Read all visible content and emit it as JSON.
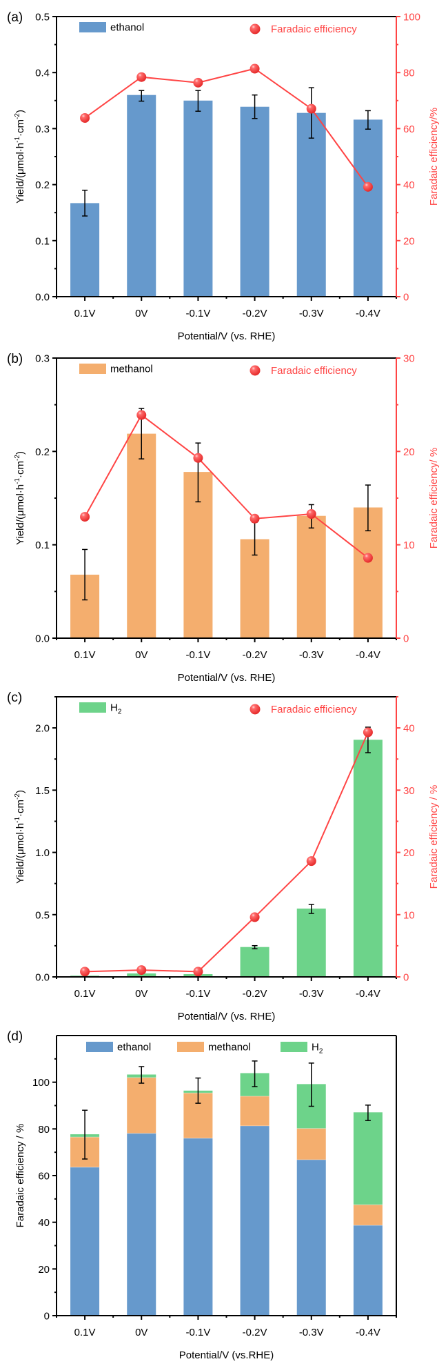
{
  "figure": {
    "panels": [
      "a",
      "b",
      "c",
      "d"
    ]
  },
  "colors": {
    "ethanol": "#6699cc",
    "methanol": "#f4ae6e",
    "h2": "#6dd38a",
    "fe": "#ff4444",
    "axis": "#000000",
    "error": "#000000"
  },
  "chart_data": [
    {
      "panel_label": "(a)",
      "type": "bar",
      "title": "",
      "categories": [
        "0.1V",
        "0V",
        "-0.1V",
        "-0.2V",
        "-0.3V",
        "-0.4V"
      ],
      "xlabel": "Potential/V (vs. RHE)",
      "ylabel": "Yield/(μmol·h⁻¹·cm⁻²)",
      "ylabel_parts": [
        "Yield/(μmol·h",
        "-1",
        "·cm",
        "-2",
        ")"
      ],
      "y2label": "Faradaic efficiency/%",
      "ylim": [
        0,
        0.5
      ],
      "yticks": [
        0.0,
        0.1,
        0.2,
        0.3,
        0.4,
        0.5
      ],
      "ytick_labels": [
        "0.0",
        "0.1",
        "0.2",
        "0.3",
        "0.4",
        "0.5"
      ],
      "y2lim": [
        0,
        100
      ],
      "y2ticks": [
        0,
        20,
        40,
        60,
        80,
        100
      ],
      "y2tick_labels": [
        "0",
        "20",
        "40",
        "60",
        "80",
        "100"
      ],
      "legend": [
        {
          "label": "ethanol",
          "kind": "bar",
          "color_key": "ethanol"
        },
        {
          "label": "Faradaic efficiency",
          "kind": "marker",
          "color_key": "fe"
        }
      ],
      "legend_position": "top",
      "bars": {
        "name": "ethanol",
        "color_key": "ethanol",
        "values": [
          0.167,
          0.36,
          0.35,
          0.339,
          0.328,
          0.316
        ],
        "err_high": [
          0.19,
          0.368,
          0.368,
          0.36,
          0.373,
          0.332
        ],
        "err_low": [
          0.144,
          0.349,
          0.331,
          0.318,
          0.283,
          0.299
        ]
      },
      "line": {
        "name": "Faradaic efficiency",
        "axis": "right",
        "color_key": "fe",
        "values": [
          63.8,
          78.4,
          76.4,
          81.4,
          67.1,
          39.2
        ]
      }
    },
    {
      "panel_label": "(b)",
      "type": "bar",
      "title": "",
      "categories": [
        "0.1V",
        "0V",
        "-0.1V",
        "-0.2V",
        "-0.3V",
        "-0.4V"
      ],
      "xlabel": "Potential/V (vs. RHE)",
      "ylabel": "Yield/(μmol·h⁻¹·cm⁻²)",
      "ylabel_parts": [
        "Yield/(μmol·h",
        "-1",
        "·cm",
        "-2",
        ")"
      ],
      "y2label": "Faradaic efficiency/ %",
      "ylim": [
        0,
        0.3
      ],
      "yticks": [
        0.0,
        0.1,
        0.2,
        0.3
      ],
      "ytick_labels": [
        "0.0",
        "0.1",
        "0.2",
        "0.3"
      ],
      "y2lim": [
        0,
        30
      ],
      "y2ticks": [
        0,
        10,
        20,
        30
      ],
      "y2tick_labels": [
        "0",
        "10",
        "20",
        "30"
      ],
      "legend": [
        {
          "label": "methanol",
          "kind": "bar",
          "color_key": "methanol"
        },
        {
          "label": "Faradaic efficiency",
          "kind": "marker",
          "color_key": "fe"
        }
      ],
      "legend_position": "top",
      "bars": {
        "name": "methanol",
        "color_key": "methanol",
        "values": [
          0.068,
          0.219,
          0.178,
          0.106,
          0.131,
          0.14
        ],
        "err_high": [
          0.095,
          0.246,
          0.209,
          0.124,
          0.143,
          0.164
        ],
        "err_low": [
          0.041,
          0.192,
          0.146,
          0.089,
          0.118,
          0.115
        ]
      },
      "line": {
        "name": "Faradaic efficiency",
        "axis": "right",
        "color_key": "fe",
        "values": [
          13.0,
          23.9,
          19.3,
          12.8,
          13.3,
          8.6
        ]
      }
    },
    {
      "panel_label": "(c)",
      "type": "bar",
      "title": "",
      "categories": [
        "0.1V",
        "0V",
        "-0.1V",
        "-0.2V",
        "-0.3V",
        "-0.4V"
      ],
      "xlabel": "Potential/V (vs. RHE)",
      "ylabel": "Yield/(μmol·h⁻¹·cm⁻²)",
      "ylabel_parts": [
        "Yield/(μmol·h",
        "-1",
        "·cm",
        "-2",
        ")"
      ],
      "y2label": "Faradaic efficiency / %",
      "ylim": [
        0,
        2.25
      ],
      "yticks": [
        0.0,
        0.5,
        1.0,
        1.5,
        2.0
      ],
      "ytick_labels": [
        "0.0",
        "0.5",
        "1.0",
        "1.5",
        "2.0"
      ],
      "y2lim": [
        0,
        45
      ],
      "y2ticks": [
        0,
        10,
        20,
        30,
        40
      ],
      "y2tick_labels": [
        "0",
        "10",
        "20",
        "30",
        "40"
      ],
      "legend": [
        {
          "label": "H",
          "sub": "2",
          "kind": "bar",
          "color_key": "h2"
        },
        {
          "label": "Faradaic efficiency",
          "kind": "marker",
          "color_key": "fe"
        }
      ],
      "legend_position": "top",
      "bars": {
        "name": "H2",
        "color_key": "h2",
        "values": [
          0.01,
          0.028,
          0.022,
          0.24,
          0.549,
          1.905
        ],
        "err_high": [
          null,
          null,
          null,
          0.251,
          0.582,
          2.006
        ],
        "err_low": [
          null,
          null,
          null,
          0.226,
          0.51,
          1.801
        ]
      },
      "line": {
        "name": "Faradaic efficiency",
        "axis": "right",
        "color_key": "fe",
        "values": [
          0.85,
          1.1,
          0.85,
          9.6,
          18.6,
          39.3
        ]
      }
    },
    {
      "panel_label": "(d)",
      "type": "bar",
      "stacked": true,
      "title": "",
      "categories": [
        "0.1V",
        "0V",
        "-0.1V",
        "-0.2V",
        "-0.3V",
        "-0.4V"
      ],
      "xlabel": "Potential/V (vs.RHE)",
      "ylabel": "Faradaic efficiency / %",
      "ylim": [
        0,
        120
      ],
      "yticks": [
        0,
        20,
        40,
        60,
        80,
        100
      ],
      "ytick_labels": [
        "0",
        "20",
        "40",
        "60",
        "80",
        "100"
      ],
      "legend": [
        {
          "label": "ethanol",
          "kind": "bar",
          "color_key": "ethanol"
        },
        {
          "label": "methanol",
          "kind": "bar",
          "color_key": "methanol"
        },
        {
          "label": "H",
          "sub": "2",
          "kind": "bar",
          "color_key": "h2"
        }
      ],
      "legend_position": "top",
      "series": [
        {
          "name": "ethanol",
          "color_key": "ethanol",
          "values": [
            63.6,
            78.1,
            76.0,
            81.3,
            66.8,
            38.7
          ]
        },
        {
          "name": "methanol",
          "color_key": "methanol",
          "values": [
            12.9,
            23.9,
            19.4,
            12.7,
            13.4,
            8.8
          ]
        },
        {
          "name": "H2",
          "color_key": "h2",
          "values": [
            1.2,
            1.3,
            1.0,
            9.9,
            19.0,
            39.6
          ]
        }
      ],
      "totals": [
        77.7,
        103.3,
        96.4,
        103.9,
        99.2,
        87.1
      ],
      "err_high": [
        88.0,
        106.7,
        101.8,
        109.1,
        108.2,
        90.2
      ],
      "err_low": [
        67.1,
        99.6,
        91.0,
        98.1,
        89.7,
        83.6
      ]
    }
  ]
}
